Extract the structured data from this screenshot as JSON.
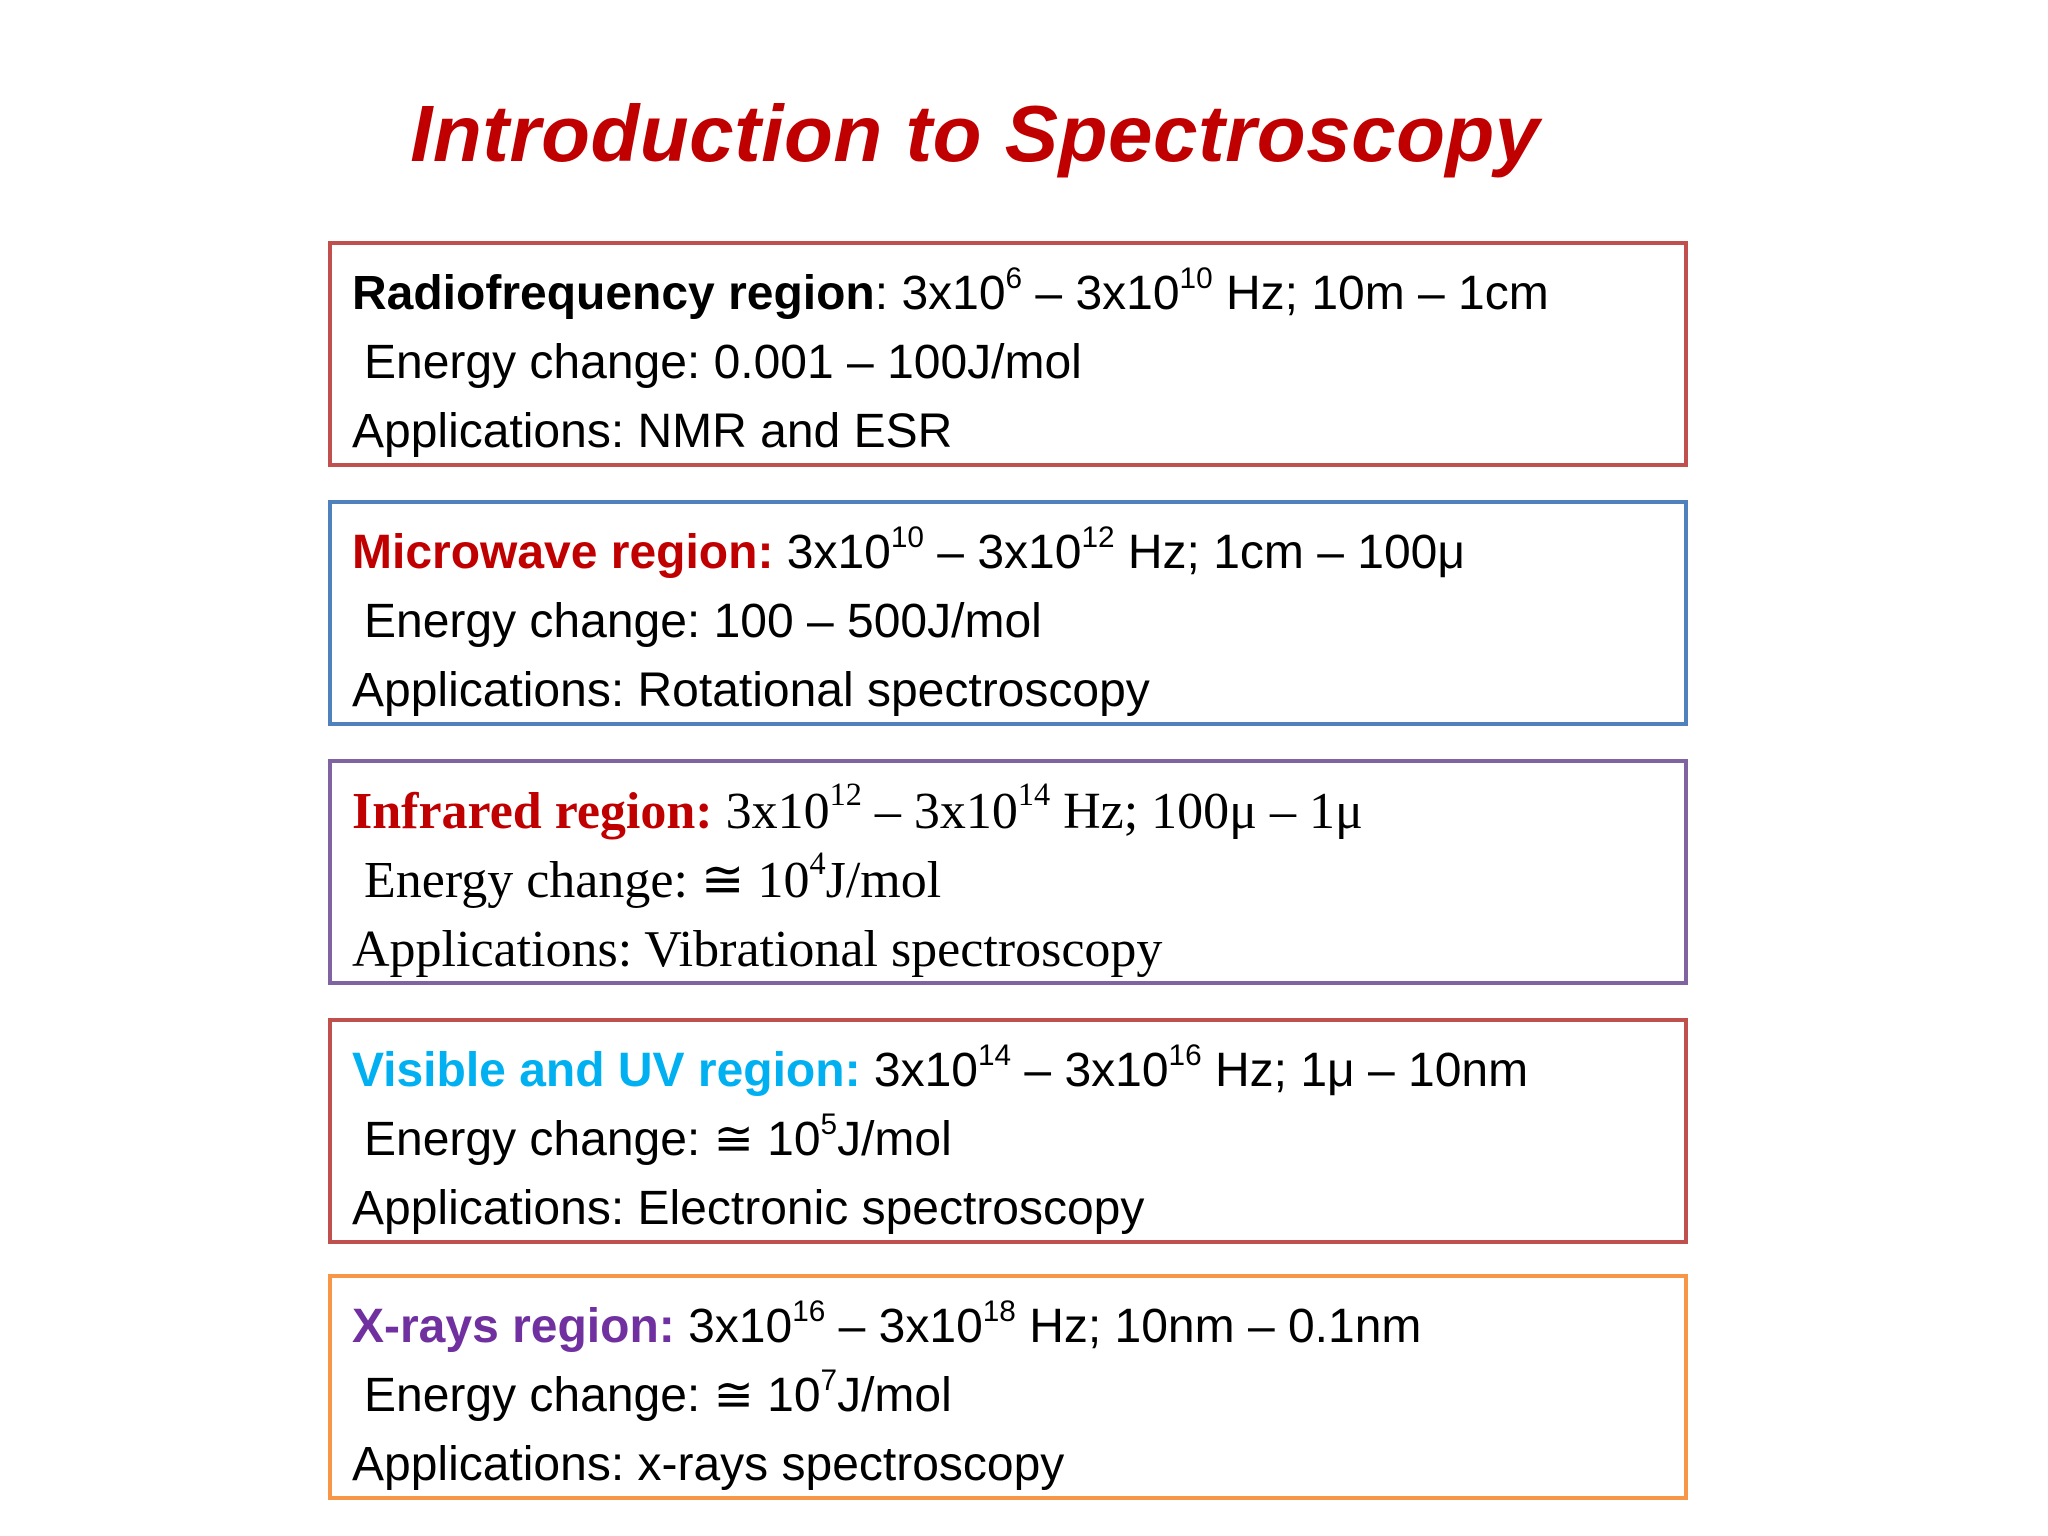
{
  "title": "Introduction to Spectroscopy",
  "regions": [
    {
      "name": "Radiofrequency region",
      "name_suffix": ":",
      "freq_start": "3x10",
      "freq_start_exp": "6",
      "range_sep": " – ",
      "freq_end": "3x10",
      "freq_end_exp": "10",
      "range_tail": " Hz; 10m – 1cm",
      "energy_prefix": "Energy change: ",
      "energy_base": "0.001 – 100J/mol",
      "energy_exp": "",
      "energy_unit": "",
      "applications": "Applications: NMR and ESR",
      "border_color": "#c0504d",
      "name_color": "#000000"
    },
    {
      "name": "Microwave region:",
      "name_suffix": "",
      "freq_start": "3x10",
      "freq_start_exp": "10",
      "range_sep": " – ",
      "freq_end": "3x10",
      "freq_end_exp": "12",
      "range_tail": " Hz; 1cm – 100μ",
      "energy_prefix": "Energy change: ",
      "energy_base": "100 – 500J/mol",
      "energy_exp": "",
      "energy_unit": "",
      "applications": "Applications: Rotational spectroscopy",
      "border_color": "#4f81bd",
      "name_color": "#c00000"
    },
    {
      "name": "Infrared region:",
      "name_suffix": "",
      "freq_start": "3x10",
      "freq_start_exp": "12",
      "range_sep": " – ",
      "freq_end": "3x10",
      "freq_end_exp": "14",
      "range_tail": " Hz; 100μ – 1μ",
      "energy_prefix": "Energy change: ≅ ",
      "energy_base": "10",
      "energy_exp": "4",
      "energy_unit": "J/mol",
      "applications": "Applications: Vibrational spectroscopy",
      "border_color": "#8064a2",
      "name_color": "#c00000"
    },
    {
      "name": "Visible and UV region:",
      "name_suffix": "",
      "freq_start": "3x10",
      "freq_start_exp": "14",
      "range_sep": " – ",
      "freq_end": "3x10",
      "freq_end_exp": "16",
      "range_tail": " Hz; 1μ – 10nm",
      "energy_prefix": "Energy change: ≅ ",
      "energy_base": "10",
      "energy_exp": "5",
      "energy_unit": "J/mol",
      "applications": "Applications: Electronic spectroscopy",
      "border_color": "#c0504d",
      "name_color": "#00b0f0"
    },
    {
      "name": "X-rays region:",
      "name_suffix": "",
      "freq_start": "3x10",
      "freq_start_exp": "16",
      "range_sep": " – ",
      "freq_end": "3x10",
      "freq_end_exp": "18",
      "range_tail": " Hz; 10nm – 0.1nm",
      "energy_prefix": "Energy change: ≅ ",
      "energy_base": "10",
      "energy_exp": "7",
      "energy_unit": "J/mol",
      "applications": "Applications: x-rays spectroscopy",
      "border_color": "#f79646",
      "name_color": "#7030a0"
    }
  ]
}
